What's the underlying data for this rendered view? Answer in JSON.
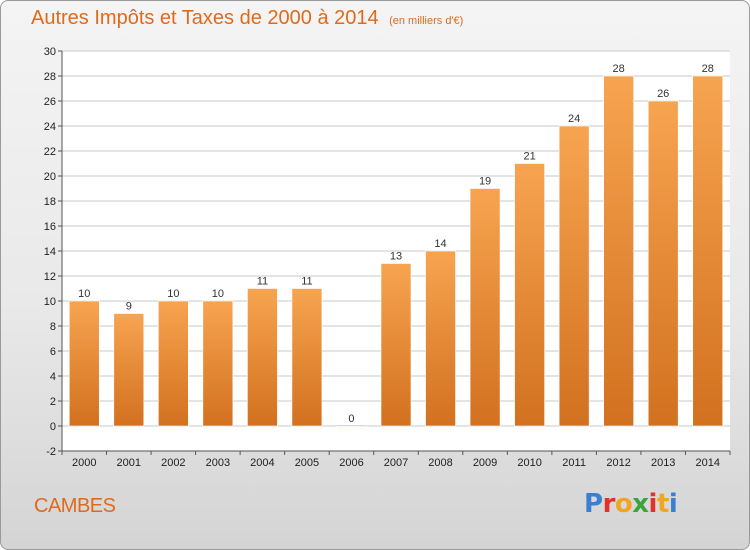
{
  "header": {
    "title": "Autres Impôts et Taxes de 2000 à 2014",
    "subtitle": "(en milliers d'€)"
  },
  "footer": {
    "place": "CAMBES",
    "logo": "Proxiti"
  },
  "colors": {
    "bar_top": "#f7a450",
    "bar_bottom": "#d2711f",
    "title": "#e06a1c",
    "grid": "#c8c8c8"
  },
  "logo_colors": [
    "#3a7fd0",
    "#e2312a",
    "#f0a623",
    "#3aa53a",
    "#e2312a",
    "#f0a623",
    "#3a7fd0"
  ],
  "chart_data": {
    "type": "bar",
    "title": "Autres Impôts et Taxes de 2000 à 2014",
    "subtitle": "(en milliers d'€)",
    "categories": [
      "2000",
      "2001",
      "2002",
      "2003",
      "2004",
      "2005",
      "2006",
      "2007",
      "2008",
      "2009",
      "2010",
      "2011",
      "2012",
      "2013",
      "2014"
    ],
    "values": [
      10,
      9,
      10,
      10,
      11,
      11,
      0,
      13,
      14,
      19,
      21,
      24,
      28,
      26,
      28
    ],
    "ylim": [
      -2,
      30
    ],
    "yticks": [
      -2,
      0,
      2,
      4,
      6,
      8,
      10,
      12,
      14,
      16,
      18,
      20,
      22,
      24,
      26,
      28,
      30
    ],
    "grid": true,
    "xlabel": "",
    "ylabel": ""
  }
}
